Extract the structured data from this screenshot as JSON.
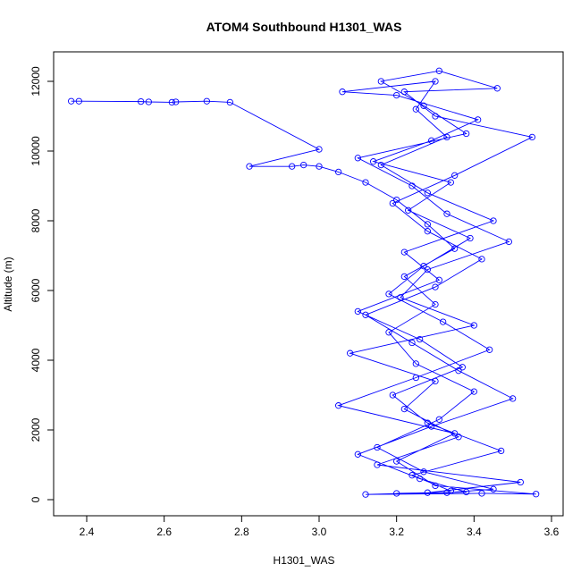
{
  "chart_data": {
    "type": "line",
    "title": "ATOM4 Southbound H1301_WAS",
    "xlabel": "H1301_WAS",
    "ylabel": "Altitude (m)",
    "x": [
      2.36,
      2.38,
      2.54,
      2.56,
      2.62,
      2.63,
      2.71,
      2.77,
      3.0,
      2.82,
      2.93,
      2.96,
      3.0,
      3.05,
      3.12,
      3.2,
      3.28,
      3.35,
      3.22,
      3.3,
      3.18,
      3.25,
      3.4,
      3.31,
      3.15,
      3.27,
      3.45,
      3.33,
      3.2,
      3.38,
      3.26,
      3.1,
      3.29,
      3.5,
      3.36,
      3.24,
      3.12,
      3.3,
      3.42,
      3.28,
      3.19,
      3.35,
      3.55,
      3.3,
      3.22,
      3.46,
      3.31,
      3.16,
      3.27,
      3.38,
      3.1,
      3.24,
      3.33,
      3.49,
      3.28,
      3.21,
      3.4,
      3.08,
      3.3,
      3.22,
      3.36,
      3.15,
      3.52,
      3.28,
      3.12,
      3.42,
      3.56,
      3.3,
      3.2,
      3.35,
      3.05,
      3.25,
      3.44,
      3.32,
      3.18,
      3.27,
      3.39,
      3.23,
      3.34,
      3.14,
      3.29,
      3.41,
      3.2,
      3.06,
      3.3,
      3.25,
      3.33,
      3.16,
      3.28,
      3.45,
      3.22,
      3.31,
      3.1,
      3.26,
      3.37,
      3.19,
      3.28,
      3.47,
      3.24,
      3.34
    ],
    "series": [
      {
        "color": "#0000ff",
        "markers": true,
        "values": [
          11430,
          11430,
          11420,
          11410,
          11400,
          11410,
          11430,
          11400,
          10050,
          9560,
          9560,
          9600,
          9560,
          9400,
          9100,
          8600,
          7900,
          7200,
          6400,
          5600,
          4800,
          3900,
          3100,
          2300,
          1500,
          800,
          300,
          200,
          180,
          220,
          600,
          1300,
          2100,
          2900,
          3700,
          4500,
          5300,
          6100,
          6900,
          7700,
          8500,
          9300,
          10400,
          11000,
          11700,
          11800,
          12300,
          12000,
          11300,
          10500,
          9800,
          9000,
          8200,
          7400,
          6600,
          5800,
          5000,
          4200,
          3400,
          2600,
          1800,
          1000,
          500,
          200,
          150,
          180,
          160,
          400,
          1100,
          1900,
          2700,
          3500,
          4300,
          5100,
          5900,
          6700,
          7500,
          8300,
          9100,
          9700,
          10300,
          10900,
          11600,
          11700,
          12000,
          11200,
          10400,
          9600,
          8800,
          8000,
          7100,
          6300,
          5400,
          4600,
          3800,
          3000,
          2200,
          1400,
          700,
          250
        ]
      }
    ],
    "xlim": [
      2.3146,
      3.63
    ],
    "ylim": [
      -461.5,
      12846
    ],
    "xticks": [
      2.4,
      2.6,
      2.8,
      {
        "value": 3,
        "label": "3.0"
      },
      3.2,
      3.4,
      3.6
    ],
    "yticks": [
      0,
      2000,
      4000,
      6000,
      8000,
      10000,
      12000
    ]
  }
}
